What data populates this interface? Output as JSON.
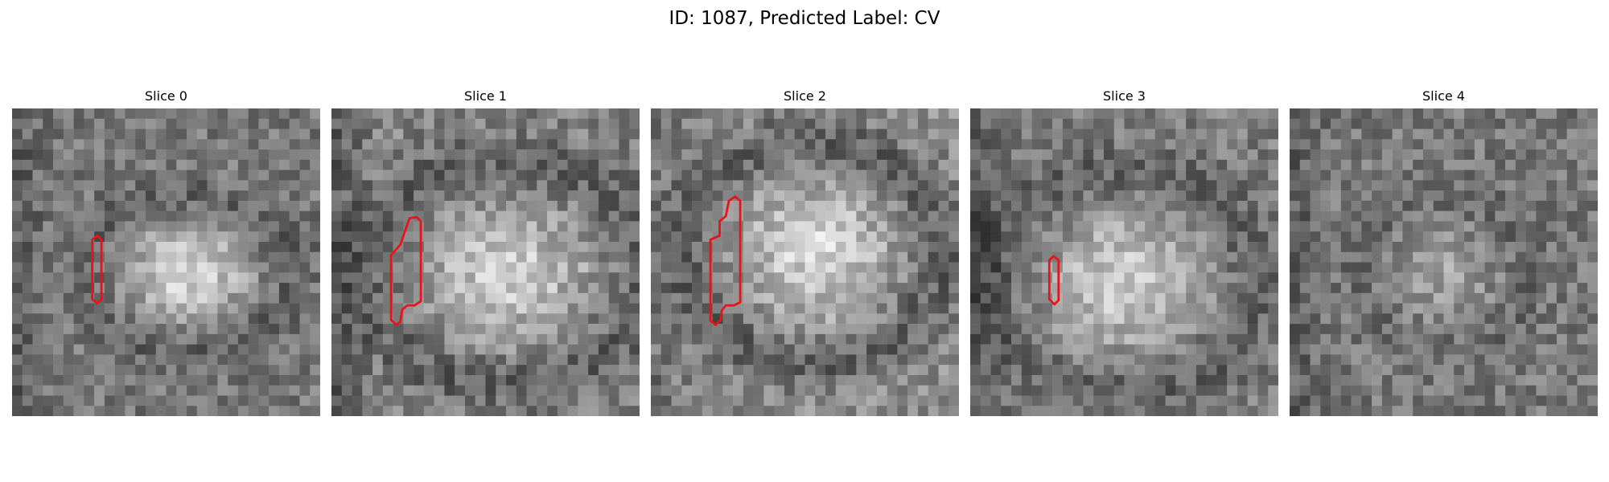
{
  "figure": {
    "title": "ID: 1087, Predicted Label: CV"
  },
  "slices": [
    {
      "label": "Slice 0",
      "contour_color": "#e8141c"
    },
    {
      "label": "Slice 1",
      "contour_color": "#e8141c"
    },
    {
      "label": "Slice 2",
      "contour_color": "#e8141c"
    },
    {
      "label": "Slice 3",
      "contour_color": "#e8141c"
    },
    {
      "label": "Slice 4",
      "contour_color": null
    }
  ]
}
